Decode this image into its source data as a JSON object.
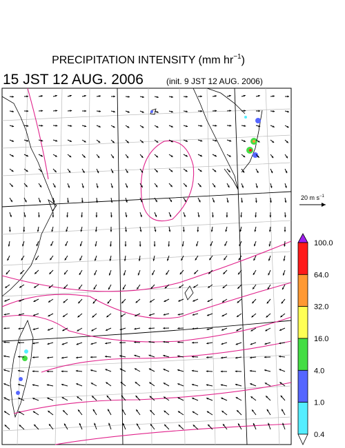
{
  "header": {
    "title": "PRECIPITATION INTENSITY (mm hr",
    "title_exponent": "−1",
    "title_close": ")",
    "valid_time": "15 JST 12 AUG. 2006",
    "init_time": "(init. 9 JST 12 AUG. 2006)"
  },
  "wind_scale": {
    "label": "20 m s",
    "exponent": "−1"
  },
  "colorbar": {
    "levels": [
      "100.0",
      "64.0",
      "32.0",
      "16.0",
      "4.0",
      "1.0",
      "0.4"
    ],
    "colors": [
      "#a020f0",
      "#ff1a1a",
      "#ff9933",
      "#ffff55",
      "#44dd44",
      "#5566ff",
      "#55eeff",
      "#ffffff"
    ]
  }
}
